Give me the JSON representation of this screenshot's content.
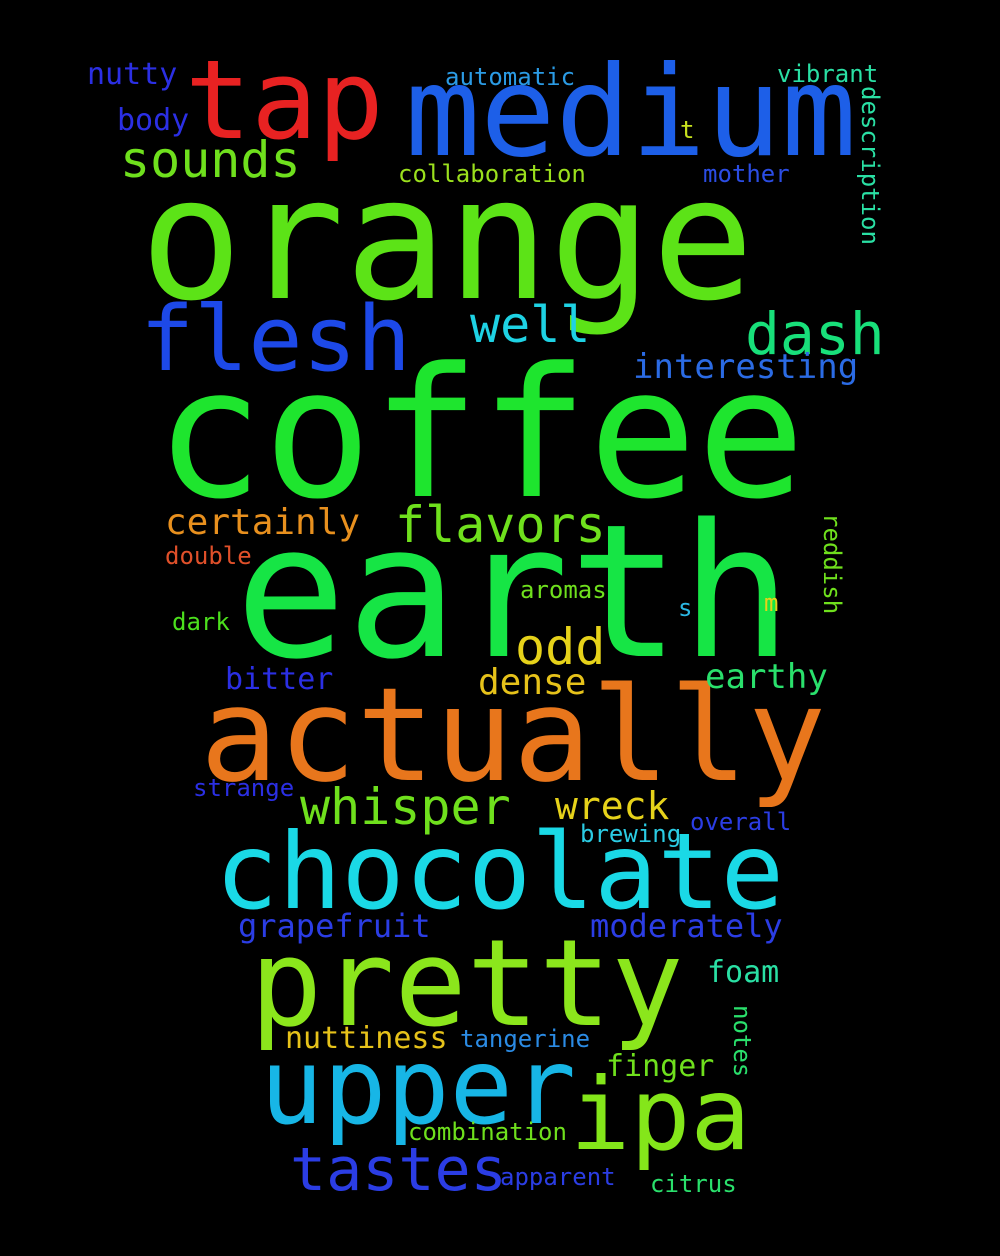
{
  "background": "#000000",
  "words": [
    {
      "text": "orange",
      "color": "#5ce317"
    },
    {
      "text": "coffee",
      "color": "#1ee52e"
    },
    {
      "text": "earth",
      "color": "#16e545"
    },
    {
      "text": "medium",
      "color": "#1d5fe8"
    },
    {
      "text": "tap",
      "color": "#e82222"
    },
    {
      "text": "actually",
      "color": "#e8761c"
    },
    {
      "text": "chocolate",
      "color": "#1ad9e6"
    },
    {
      "text": "pretty",
      "color": "#8be61c"
    },
    {
      "text": "upper",
      "color": "#17b6e6"
    },
    {
      "text": "ipa",
      "color": "#84e61a"
    },
    {
      "text": "flesh",
      "color": "#1d49e8"
    },
    {
      "text": "tastes",
      "color": "#2b3de4"
    },
    {
      "text": "sounds",
      "color": "#6fe01d"
    },
    {
      "text": "dash",
      "color": "#18e07a"
    },
    {
      "text": "well",
      "color": "#1ed2e4"
    },
    {
      "text": "flavors",
      "color": "#6fe01d"
    },
    {
      "text": "whisper",
      "color": "#6fe01d"
    },
    {
      "text": "odd",
      "color": "#e6d21a"
    },
    {
      "text": "certainly",
      "color": "#e8901e"
    },
    {
      "text": "wreck",
      "color": "#e6d21a"
    },
    {
      "text": "dense",
      "color": "#e6c21a"
    },
    {
      "text": "earthy",
      "color": "#2ae06c"
    },
    {
      "text": "interesting",
      "color": "#2b6be4"
    },
    {
      "text": "grapefruit",
      "color": "#2b3de4"
    },
    {
      "text": "moderately",
      "color": "#2b3de4"
    },
    {
      "text": "nuttiness",
      "color": "#e6c21a"
    },
    {
      "text": "bitter",
      "color": "#2b2fe4"
    },
    {
      "text": "foam",
      "color": "#2ae0a4"
    },
    {
      "text": "finger",
      "color": "#6fe01d"
    },
    {
      "text": "nutty",
      "color": "#2b2fe4"
    },
    {
      "text": "body",
      "color": "#2b2fe4"
    },
    {
      "text": "automatic",
      "color": "#2b9be4"
    },
    {
      "text": "vibrant",
      "color": "#2ae0a4"
    },
    {
      "text": "collaboration",
      "color": "#9be01d"
    },
    {
      "text": "mother",
      "color": "#2b4de4"
    },
    {
      "text": "t",
      "color": "#c6e01d"
    },
    {
      "text": "description",
      "color": "#2ae0a4"
    },
    {
      "text": "double",
      "color": "#e0502a"
    },
    {
      "text": "dark",
      "color": "#4ce01d"
    },
    {
      "text": "aromas",
      "color": "#6fe01d"
    },
    {
      "text": "s",
      "color": "#2bb8e4"
    },
    {
      "text": "m",
      "color": "#e6d21a"
    },
    {
      "text": "reddish",
      "color": "#6fe01d"
    },
    {
      "text": "strange",
      "color": "#2b2fe4"
    },
    {
      "text": "brewing",
      "color": "#2bcce4"
    },
    {
      "text": "overall",
      "color": "#2b3de4"
    },
    {
      "text": "tangerine",
      "color": "#2b8be4"
    },
    {
      "text": "notes",
      "color": "#2ae06c"
    },
    {
      "text": "combination",
      "color": "#6fe01d"
    },
    {
      "text": "apparent",
      "color": "#2b3de4"
    },
    {
      "text": "citrus",
      "color": "#2ae06c"
    }
  ]
}
